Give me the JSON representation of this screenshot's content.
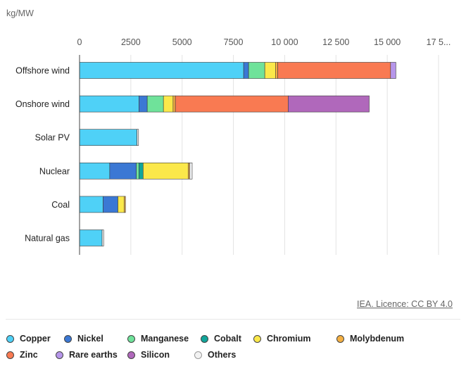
{
  "chart_data": {
    "type": "bar",
    "orientation": "horizontal",
    "stacked": true,
    "unit_label": "kg/MW",
    "xlim": [
      0,
      17500
    ],
    "x_ticks": [
      0,
      2500,
      5000,
      7500,
      10000,
      12500,
      15000,
      17500
    ],
    "x_tick_labels": [
      "0",
      "2500",
      "5000",
      "7500",
      "10 000",
      "12 500",
      "15 000",
      "17 5..."
    ],
    "grid": true,
    "categories": [
      "Offshore wind",
      "Onshore wind",
      "Solar PV",
      "Nuclear",
      "Coal",
      "Natural gas"
    ],
    "series": [
      {
        "name": "Copper",
        "color": "#4fd1f7",
        "values": [
          8000,
          2900,
          2800,
          1470,
          1150,
          1100
        ]
      },
      {
        "name": "Nickel",
        "color": "#3b78d4",
        "values": [
          240,
          400,
          0,
          1300,
          720,
          0
        ]
      },
      {
        "name": "Manganese",
        "color": "#6fe29a",
        "values": [
          790,
          790,
          0,
          130,
          0,
          0
        ]
      },
      {
        "name": "Cobalt",
        "color": "#11a59a",
        "values": [
          0,
          0,
          0,
          200,
          0,
          0
        ]
      },
      {
        "name": "Chromium",
        "color": "#fbe84a",
        "values": [
          520,
          470,
          0,
          2200,
          310,
          0
        ]
      },
      {
        "name": "Molybdenum",
        "color": "#f4b043",
        "values": [
          110,
          110,
          0,
          70,
          60,
          0
        ]
      },
      {
        "name": "Zinc",
        "color": "#f97a52",
        "values": [
          5500,
          5500,
          0,
          0,
          0,
          0
        ]
      },
      {
        "name": "Rare earths",
        "color": "#b696ea",
        "values": [
          260,
          0,
          0,
          0,
          0,
          0
        ]
      },
      {
        "name": "Silicon",
        "color": "#b068bb",
        "values": [
          0,
          3950,
          0,
          0,
          0,
          0
        ]
      },
      {
        "name": "Others",
        "color": "#f2f2f2",
        "values": [
          0,
          0,
          75,
          120,
          0,
          75
        ]
      }
    ],
    "legend_position": "bottom",
    "source": "IEA. Licence: CC BY 4.0"
  }
}
